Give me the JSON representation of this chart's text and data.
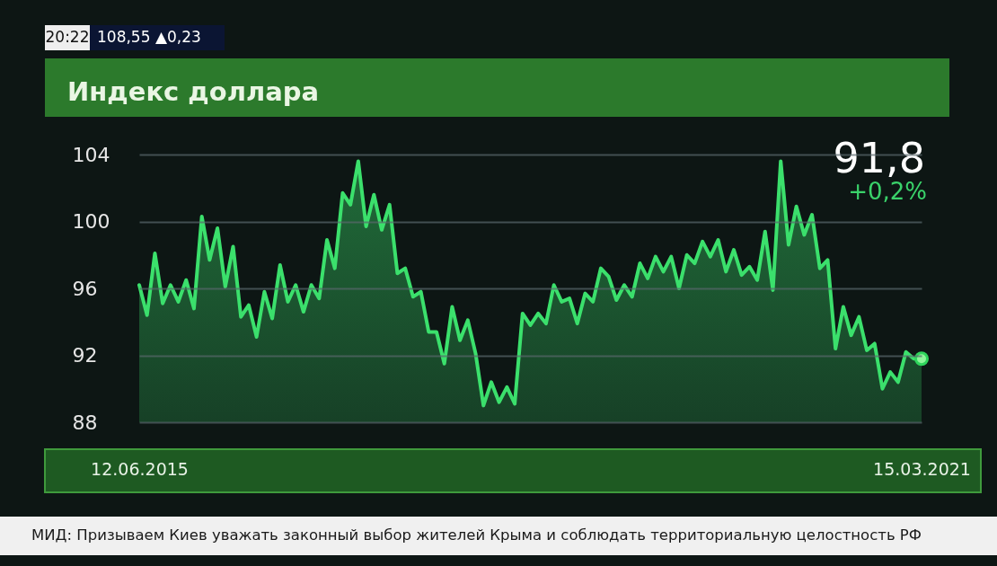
{
  "chart_data": {
    "type": "area",
    "title": "Индекс доллара",
    "categories": [
      "12.06.2015",
      null,
      null,
      null,
      null,
      null,
      null,
      null,
      null,
      null,
      null,
      null,
      null,
      null,
      null,
      null,
      null,
      null,
      null,
      null,
      null,
      null,
      null,
      null,
      null,
      null,
      null,
      null,
      null,
      null,
      null,
      null,
      null,
      null,
      null,
      null,
      null,
      null,
      null,
      null,
      null,
      null,
      null,
      null,
      null,
      null,
      null,
      null,
      null,
      null,
      null,
      null,
      null,
      null,
      null,
      null,
      null,
      null,
      null,
      null,
      null,
      null,
      null,
      null,
      null,
      null,
      null,
      null,
      null,
      null,
      null,
      null,
      null,
      null,
      null,
      null,
      null,
      null,
      null,
      null,
      null,
      null,
      null,
      null,
      null,
      null,
      null,
      null,
      null,
      null,
      null,
      null,
      null,
      null,
      null,
      null,
      null,
      null,
      null,
      null,
      "15.03.2021"
    ],
    "series": [
      {
        "color": "#3be06c",
        "values": [
          96.2,
          94.4,
          98.1,
          95.1,
          96.2,
          95.2,
          96.5,
          94.8,
          100.3,
          97.7,
          99.6,
          96.1,
          98.5,
          94.3,
          95.0,
          93.1,
          95.8,
          94.2,
          97.4,
          95.2,
          96.2,
          94.6,
          96.2,
          95.4,
          98.9,
          97.2,
          101.7,
          101.0,
          103.6,
          99.7,
          101.6,
          99.5,
          101.0,
          96.9,
          97.2,
          95.5,
          95.8,
          93.4,
          93.4,
          91.5,
          94.9,
          92.9,
          94.1,
          92.1,
          89.0,
          90.4,
          89.2,
          90.1,
          89.1,
          94.5,
          93.8,
          94.5,
          93.9,
          96.2,
          95.2,
          95.4,
          93.9,
          95.7,
          95.2,
          97.2,
          96.7,
          95.3,
          96.2,
          95.5,
          97.5,
          96.6,
          97.9,
          97.0,
          97.9,
          96.0,
          98.0,
          97.5,
          98.8,
          97.9,
          98.9,
          97.0,
          98.3,
          96.8,
          97.3,
          96.5,
          99.4,
          95.9,
          103.6,
          98.6,
          100.9,
          99.2,
          100.4,
          97.2,
          97.7,
          92.4,
          94.9,
          93.2,
          94.3,
          92.3,
          92.7,
          90.0,
          91.0,
          90.4,
          92.2,
          91.8,
          91.8
        ]
      },
      {
        "type": "scatter",
        "color": "#8ef59a",
        "marker": "circle",
        "values": [
          null,
          null,
          null,
          null,
          null,
          null,
          null,
          null,
          null,
          null,
          null,
          null,
          null,
          null,
          null,
          null,
          null,
          null,
          null,
          null,
          null,
          null,
          null,
          null,
          null,
          null,
          null,
          null,
          null,
          null,
          null,
          null,
          null,
          null,
          null,
          null,
          null,
          null,
          null,
          null,
          null,
          null,
          null,
          null,
          null,
          null,
          null,
          null,
          null,
          null,
          null,
          null,
          null,
          null,
          null,
          null,
          null,
          null,
          null,
          null,
          null,
          null,
          null,
          null,
          null,
          null,
          null,
          null,
          null,
          null,
          null,
          null,
          null,
          null,
          null,
          null,
          null,
          null,
          null,
          null,
          null,
          null,
          null,
          null,
          null,
          null,
          null,
          null,
          null,
          null,
          null,
          null,
          null,
          null,
          null,
          null,
          null,
          null,
          null,
          null,
          91.8
        ]
      }
    ],
    "ylim": [
      88,
      104
    ],
    "yticks": [
      88,
      92,
      96,
      100,
      104
    ],
    "grid": "y",
    "annotations": [
      "91,8",
      "+0,2%",
      "20:22",
      "108,55 ▲0,23",
      "МИД: Призываем Киев уважать законный выбор жителей Крыма и соблюдать территориальную целостность РФ"
    ]
  }
}
